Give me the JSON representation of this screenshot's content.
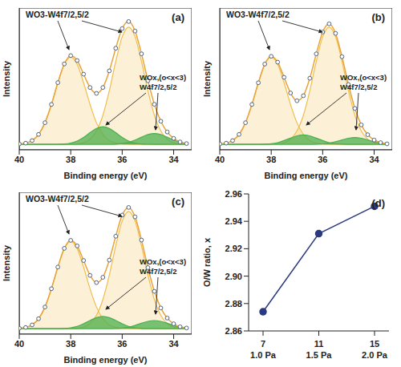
{
  "chart_data": [
    {
      "type": "line",
      "title": "(a)",
      "x_label": "Binding energy (eV)",
      "y_label": "Intensity",
      "x": [
        40,
        39.75,
        39.5,
        39.25,
        39,
        38.75,
        38.5,
        38.25,
        38,
        37.75,
        37.5,
        37.25,
        37,
        36.75,
        36.5,
        36.25,
        36,
        35.75,
        35.5,
        35.25,
        35,
        34.75,
        34.5,
        34.25,
        34,
        33.75,
        33.5
      ],
      "xlim": [
        40,
        33.3
      ],
      "xticks": [
        40,
        38,
        36,
        34
      ],
      "ylim": [
        -4,
        100
      ],
      "tick_labels": "x",
      "color": "#e8a33a",
      "marker": "circle",
      "values": [
        0.3,
        0.9,
        2.8,
        7.3,
        15.9,
        29.3,
        45.3,
        59,
        65.1,
        61.5,
        51.5,
        41.7,
        37.4,
        41.7,
        53.9,
        70.5,
        84.9,
        90.1,
        83.1,
        66.4,
        46.7,
        29.4,
        17,
        9.1,
        4.4,
        1.8,
        0.6
      ],
      "series": [
        {
          "name": "WO3-W4f7/2,5/2",
          "type": "area",
          "color": "#f0bd4a",
          "peaks": [
            [
              0,
              0,
              0,
              0,
              0,
              0,
              0,
              0,
              0.1,
              0.3,
              1.2,
              3.8,
              9.8,
              21.4,
              39.4,
              60.8,
              78.9,
              86,
              78.9,
              60.8,
              39.4,
              21.4,
              9.8,
              3.8,
              1.2,
              0.3,
              0
            ],
            [
              0.3,
              0.9,
              2.8,
              7.3,
              15.9,
              29.3,
              45.2,
              58.7,
              64,
              58.7,
              45.2,
              29.3,
              15.9,
              7.3,
              2.8,
              0.9,
              0.3,
              0.1,
              0,
              0,
              0,
              0,
              0,
              0,
              0,
              0,
              0
            ]
          ]
        },
        {
          "name": "WOx,(o<x<3) W4f7/2,5/2",
          "type": "area",
          "color": "#4caf50",
          "peaks": [
            [
              0,
              0,
              0,
              0,
              0,
              0,
              0.1,
              0.3,
              1,
              2.5,
              5.1,
              8.6,
              11.7,
              13,
              11.7,
              8.6,
              5.1,
              2.5,
              1,
              0.3,
              0.1,
              0,
              0,
              0,
              0,
              0,
              0
            ],
            [
              0,
              0,
              0,
              0,
              0,
              0,
              0,
              0,
              0,
              0,
              0,
              0,
              0,
              0,
              0,
              0.2,
              0.6,
              1.5,
              3.2,
              5.3,
              7.2,
              8,
              7.2,
              5.3,
              3.2,
              1.5,
              0.6
            ]
          ]
        }
      ]
    },
    {
      "type": "line",
      "title": "(b)",
      "x_label": "Binding energy (eV)",
      "y_label": "Intensity",
      "x": [
        40,
        39.75,
        39.5,
        39.25,
        39,
        38.75,
        38.5,
        38.25,
        38,
        37.75,
        37.5,
        37.25,
        37,
        36.75,
        36.5,
        36.25,
        36,
        35.75,
        35.5,
        35.25,
        35,
        34.75,
        34.5,
        34.25,
        34,
        33.75,
        33.5
      ],
      "xlim": [
        40,
        33.3
      ],
      "xticks": [
        40,
        38,
        36,
        34
      ],
      "ylim": [
        -4,
        100
      ],
      "tick_labels": "x",
      "color": "#e8a33a",
      "marker": "circle",
      "values": [
        0.3,
        0.9,
        2.8,
        7.3,
        15.9,
        29.3,
        45.2,
        58.9,
        64.6,
        60.3,
        49.2,
        37.7,
        32,
        35.7,
        48.5,
        66.4,
        82.4,
        88.4,
        81.4,
        64.3,
        43.9,
        26.4,
        14.3,
        7.1,
        3.2,
        1.3,
        0.4
      ],
      "series": [
        {
          "name": "WO3-W4f7/2,5/2",
          "type": "area",
          "color": "#f0bd4a",
          "peaks": [
            [
              0,
              0,
              0,
              0,
              0,
              0,
              0,
              0,
              0.1,
              0.3,
              1.2,
              3.8,
              9.8,
              21.4,
              39.4,
              60.8,
              78.9,
              86,
              78.9,
              60.8,
              39.4,
              21.4,
              9.8,
              3.8,
              1.2,
              0.3,
              0
            ],
            [
              0.3,
              0.9,
              2.8,
              7.3,
              15.9,
              29.3,
              45.2,
              58.7,
              64,
              58.7,
              45.2,
              29.3,
              15.9,
              7.3,
              2.8,
              0.9,
              0.3,
              0.1,
              0,
              0,
              0,
              0,
              0,
              0,
              0,
              0,
              0
            ]
          ]
        },
        {
          "name": "WOx,(o<x<3) W4f7/2,5/2",
          "type": "area",
          "color": "#4caf50",
          "peaks": [
            [
              0,
              0,
              0,
              0,
              0,
              0,
              0,
              0.2,
              0.5,
              1.3,
              2.8,
              4.6,
              6.3,
              7,
              6.3,
              4.6,
              2.8,
              1.3,
              0.5,
              0.2,
              0,
              0,
              0,
              0,
              0,
              0,
              0
            ],
            [
              0,
              0,
              0,
              0,
              0,
              0,
              0,
              0,
              0,
              0,
              0,
              0,
              0,
              0,
              0,
              0.1,
              0.4,
              1,
              2,
              3.3,
              4.5,
              5,
              4.5,
              3.3,
              2,
              1,
              0.4
            ]
          ]
        }
      ]
    },
    {
      "type": "line",
      "title": "(c)",
      "x_label": "Binding energy (eV)",
      "y_label": "Intensity",
      "x": [
        40,
        39.75,
        39.5,
        39.25,
        39,
        38.75,
        38.5,
        38.25,
        38,
        37.75,
        37.5,
        37.25,
        37,
        36.75,
        36.5,
        36.25,
        36,
        35.75,
        35.5,
        35.25,
        35,
        34.75,
        34.5,
        34.25,
        34,
        33.75,
        33.5
      ],
      "xlim": [
        40,
        33.3
      ],
      "xticks": [
        40,
        38,
        36,
        34
      ],
      "ylim": [
        -4,
        100
      ],
      "tick_labels": "x",
      "color": "#e8a33a",
      "marker": "circle",
      "values": [
        0.3,
        0.9,
        2.8,
        7.3,
        15.9,
        29.3,
        45.2,
        58.9,
        64.8,
        60.7,
        50,
        39.1,
        33.8,
        37.7,
        50.3,
        67.8,
        83.3,
        88.9,
        82,
        65,
        44.8,
        27.4,
        15.2,
        7.8,
        3.6,
        1.4,
        0.5
      ],
      "series": [
        {
          "name": "WO3-W4f7/2,5/2",
          "type": "area",
          "color": "#f0bd4a",
          "peaks": [
            [
              0,
              0,
              0,
              0,
              0,
              0,
              0,
              0,
              0.1,
              0.3,
              1.2,
              3.8,
              9.8,
              21.4,
              39.4,
              60.8,
              78.9,
              86,
              78.9,
              60.8,
              39.4,
              21.4,
              9.8,
              3.8,
              1.2,
              0.3,
              0
            ],
            [
              0.3,
              0.9,
              2.8,
              7.3,
              15.9,
              29.3,
              45.2,
              58.7,
              64,
              58.7,
              45.2,
              29.3,
              15.9,
              7.3,
              2.8,
              0.9,
              0.3,
              0.1,
              0,
              0,
              0,
              0,
              0,
              0,
              0,
              0,
              0
            ]
          ]
        },
        {
          "name": "WOx,(o<x<3) W4f7/2,5/2",
          "type": "area",
          "color": "#4caf50",
          "peaks": [
            [
              0,
              0,
              0,
              0,
              0,
              0,
              0,
              0.2,
              0.7,
              1.7,
              3.6,
              6,
              8.1,
              9,
              8.1,
              6,
              3.6,
              1.7,
              0.7,
              0.2,
              0,
              0,
              0,
              0,
              0,
              0,
              0
            ],
            [
              0,
              0,
              0,
              0,
              0,
              0,
              0,
              0,
              0,
              0,
              0,
              0,
              0,
              0,
              0,
              0.1,
              0.5,
              1.1,
              2.4,
              4,
              5.4,
              6,
              5.4,
              4,
              2.4,
              1.1,
              0.5
            ]
          ]
        }
      ]
    },
    {
      "type": "line",
      "title": "(d)",
      "y_label": "O/W ratio, x",
      "categories": [
        "7",
        "11",
        "15"
      ],
      "sublabels": [
        "1.0 Pa",
        "1.5 Pa",
        "2.0 Pa"
      ],
      "values": [
        2.874,
        2.931,
        2.951
      ],
      "ylim": [
        2.86,
        2.96
      ],
      "yticks": [
        2.86,
        2.88,
        {
          "value": 2.9,
          "label": "2.90"
        },
        2.92,
        2.94,
        2.96
      ],
      "color": "#2b3a80",
      "marker": "circle"
    }
  ]
}
